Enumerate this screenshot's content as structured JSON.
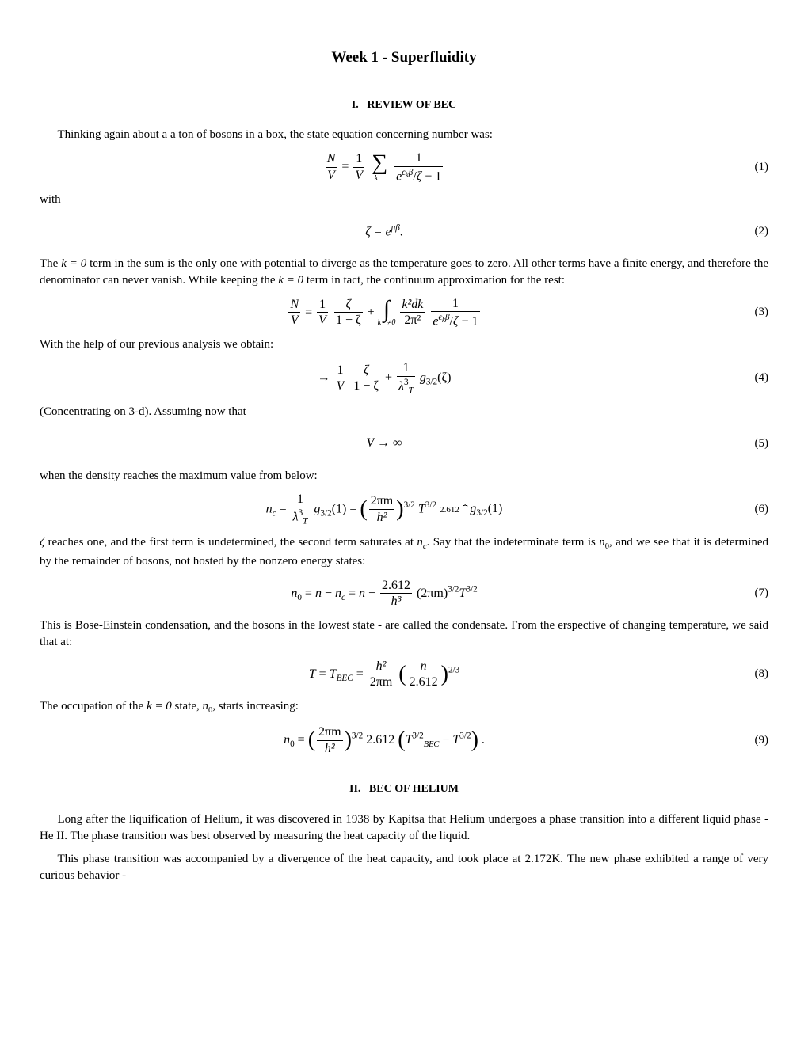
{
  "title": "Week 1 - Superfluidity",
  "sections": {
    "s1": {
      "num": "I.",
      "title": "REVIEW OF BEC"
    },
    "s2": {
      "num": "II.",
      "title": "BEC OF HELIUM"
    }
  },
  "paras": {
    "p1": "Thinking again about a a ton of bosons in a box, the state equation concerning number was:",
    "p2": "with",
    "p3a": "The ",
    "p3b": " term in the sum is the only one with potential to diverge as the temperature goes to zero. All other terms have a finite energy, and therefore the denominator can never vanish. While keeping the ",
    "p3c": " term in tact, the continuum approximation for the rest:",
    "p4": "With the help of our previous analysis we obtain:",
    "p5": "(Concentrating on 3-d). Assuming now that",
    "p6": "when the density reaches the maximum value from below:",
    "p7a": " reaches one, and the first term is undetermined, the second term saturates at ",
    "p7b": ". Say that the indeterminate term is ",
    "p7c": ", and we see that it is determined by the remainder of bosons, not hosted by the nonzero energy states:",
    "p8": "This is Bose-Einstein condensation, and the bosons in the lowest state - are called the condensate. From the erspective of changing temperature, we said that at:",
    "p9a": "The occupation of the ",
    "p9b": " state, ",
    "p9c": ", starts increasing:",
    "p10": "Long after the liquification of Helium, it was discovered in 1938 by Kapitsa that Helium undergoes a phase transition into a different liquid phase - He II. The phase transition was best observed by measuring the heat capacity of the liquid.",
    "p11": "This phase transition was accompanied by a divergence of the heat capacity, and took place at 2.172K. The new phase exhibited a range of very curious behavior -"
  },
  "inline": {
    "k0": "k = 0",
    "zeta": "ζ",
    "nc": "n",
    "ncSub": "c",
    "n0": "n",
    "n0Sub": "0"
  },
  "eqs": {
    "e1": {
      "num": "(1)"
    },
    "e2": {
      "num": "(2)",
      "text": "ζ = e",
      "exp": "μβ",
      "suffix": "."
    },
    "e3": {
      "num": "(3)"
    },
    "e4": {
      "num": "(4)"
    },
    "e5": {
      "num": "(5)",
      "text": "V → ∞"
    },
    "e6": {
      "num": "(6)",
      "overbraceTop": "2.612"
    },
    "e7": {
      "num": "(7)"
    },
    "e8": {
      "num": "(8)"
    },
    "e9": {
      "num": "(9)"
    }
  },
  "math": {
    "N": "N",
    "V": "V",
    "one": "1",
    "oneOverV": {
      "num": "1",
      "den": "V"
    },
    "NoverV": {
      "num": "N",
      "den": "V"
    },
    "kvec": "k⃗",
    "epsK": "ϵ",
    "epsKsub": "k",
    "beta": "β",
    "zetaFrac": {
      "num": "ζ",
      "den": "1 − ζ"
    },
    "k2dk2pi2": {
      "num": "k²dk",
      "den": "2π²"
    },
    "kneq0": "k⃗≠0",
    "lambdaT3": "λ",
    "lambdaTsub": "T",
    "lambdaTexp": "3",
    "g32": "g",
    "g32sub": "3/2",
    "g32ofZeta": "(ζ)",
    "g32of1": "(1)",
    "nc": "n",
    "ncSub": "c",
    "equals": " = ",
    "plus": " + ",
    "arrow": "→ ",
    "twoPiM": "2πm",
    "h2": "h²",
    "h3": "h³",
    "T32": "T",
    "T32exp": "3/2",
    "twoPiMh2": {
      "num": "2πm",
      "den": "h²"
    },
    "exp32": "3/2",
    "n0": "n",
    "n0sub": "0",
    "n": "n",
    "minus": " − ",
    "const2612": "2.612",
    "h3frac": {
      "num": "2.612",
      "den": "h³"
    },
    "twoPiMparen": "(2πm)",
    "T": "T",
    "TBEC": "T",
    "TBECsub": "BEC",
    "h2over2pim": {
      "num": "h²",
      "den": "2πm"
    },
    "nover2612": {
      "num": "n",
      "den": "2.612"
    },
    "exp23": "2/3",
    "TBEC32": "T",
    "TBEC32sub": "BEC",
    "TBEC32exp": "3/2",
    "period": "."
  }
}
